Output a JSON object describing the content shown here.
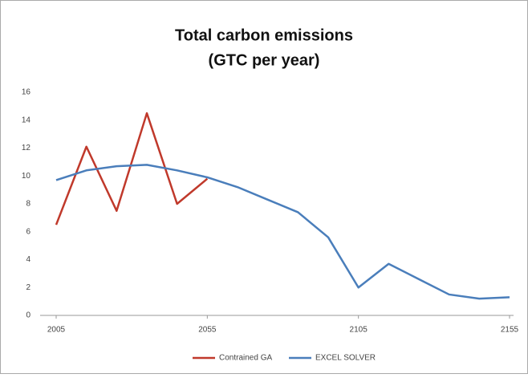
{
  "chart_data": {
    "type": "line",
    "title": [
      "Total carbon emissions",
      "(GTC per year)"
    ],
    "x": [
      2005,
      2015,
      2025,
      2035,
      2045,
      2055,
      2065,
      2075,
      2085,
      2095,
      2105,
      2115,
      2125,
      2135,
      2145,
      2155
    ],
    "series": [
      {
        "name": "Contrained GA",
        "color": "#c0392b",
        "values": [
          6.5,
          12.1,
          7.5,
          14.5,
          8.0,
          9.8,
          null,
          null,
          null,
          null,
          null,
          null,
          null,
          null,
          null,
          null
        ]
      },
      {
        "name": "EXCEL SOLVER",
        "color": "#4a7ebb",
        "values": [
          9.7,
          10.4,
          10.7,
          10.8,
          10.4,
          9.9,
          9.2,
          8.3,
          7.4,
          5.6,
          2.0,
          3.7,
          2.6,
          1.5,
          1.2,
          1.3
        ]
      }
    ],
    "xlim": [
      2005,
      2155
    ],
    "xticks": [
      2005,
      2055,
      2105,
      2155
    ],
    "ylim": [
      0,
      16
    ],
    "yticks": [
      0,
      2,
      4,
      6,
      8,
      10,
      12,
      14,
      16
    ],
    "grid": false,
    "legend": "bottom"
  }
}
